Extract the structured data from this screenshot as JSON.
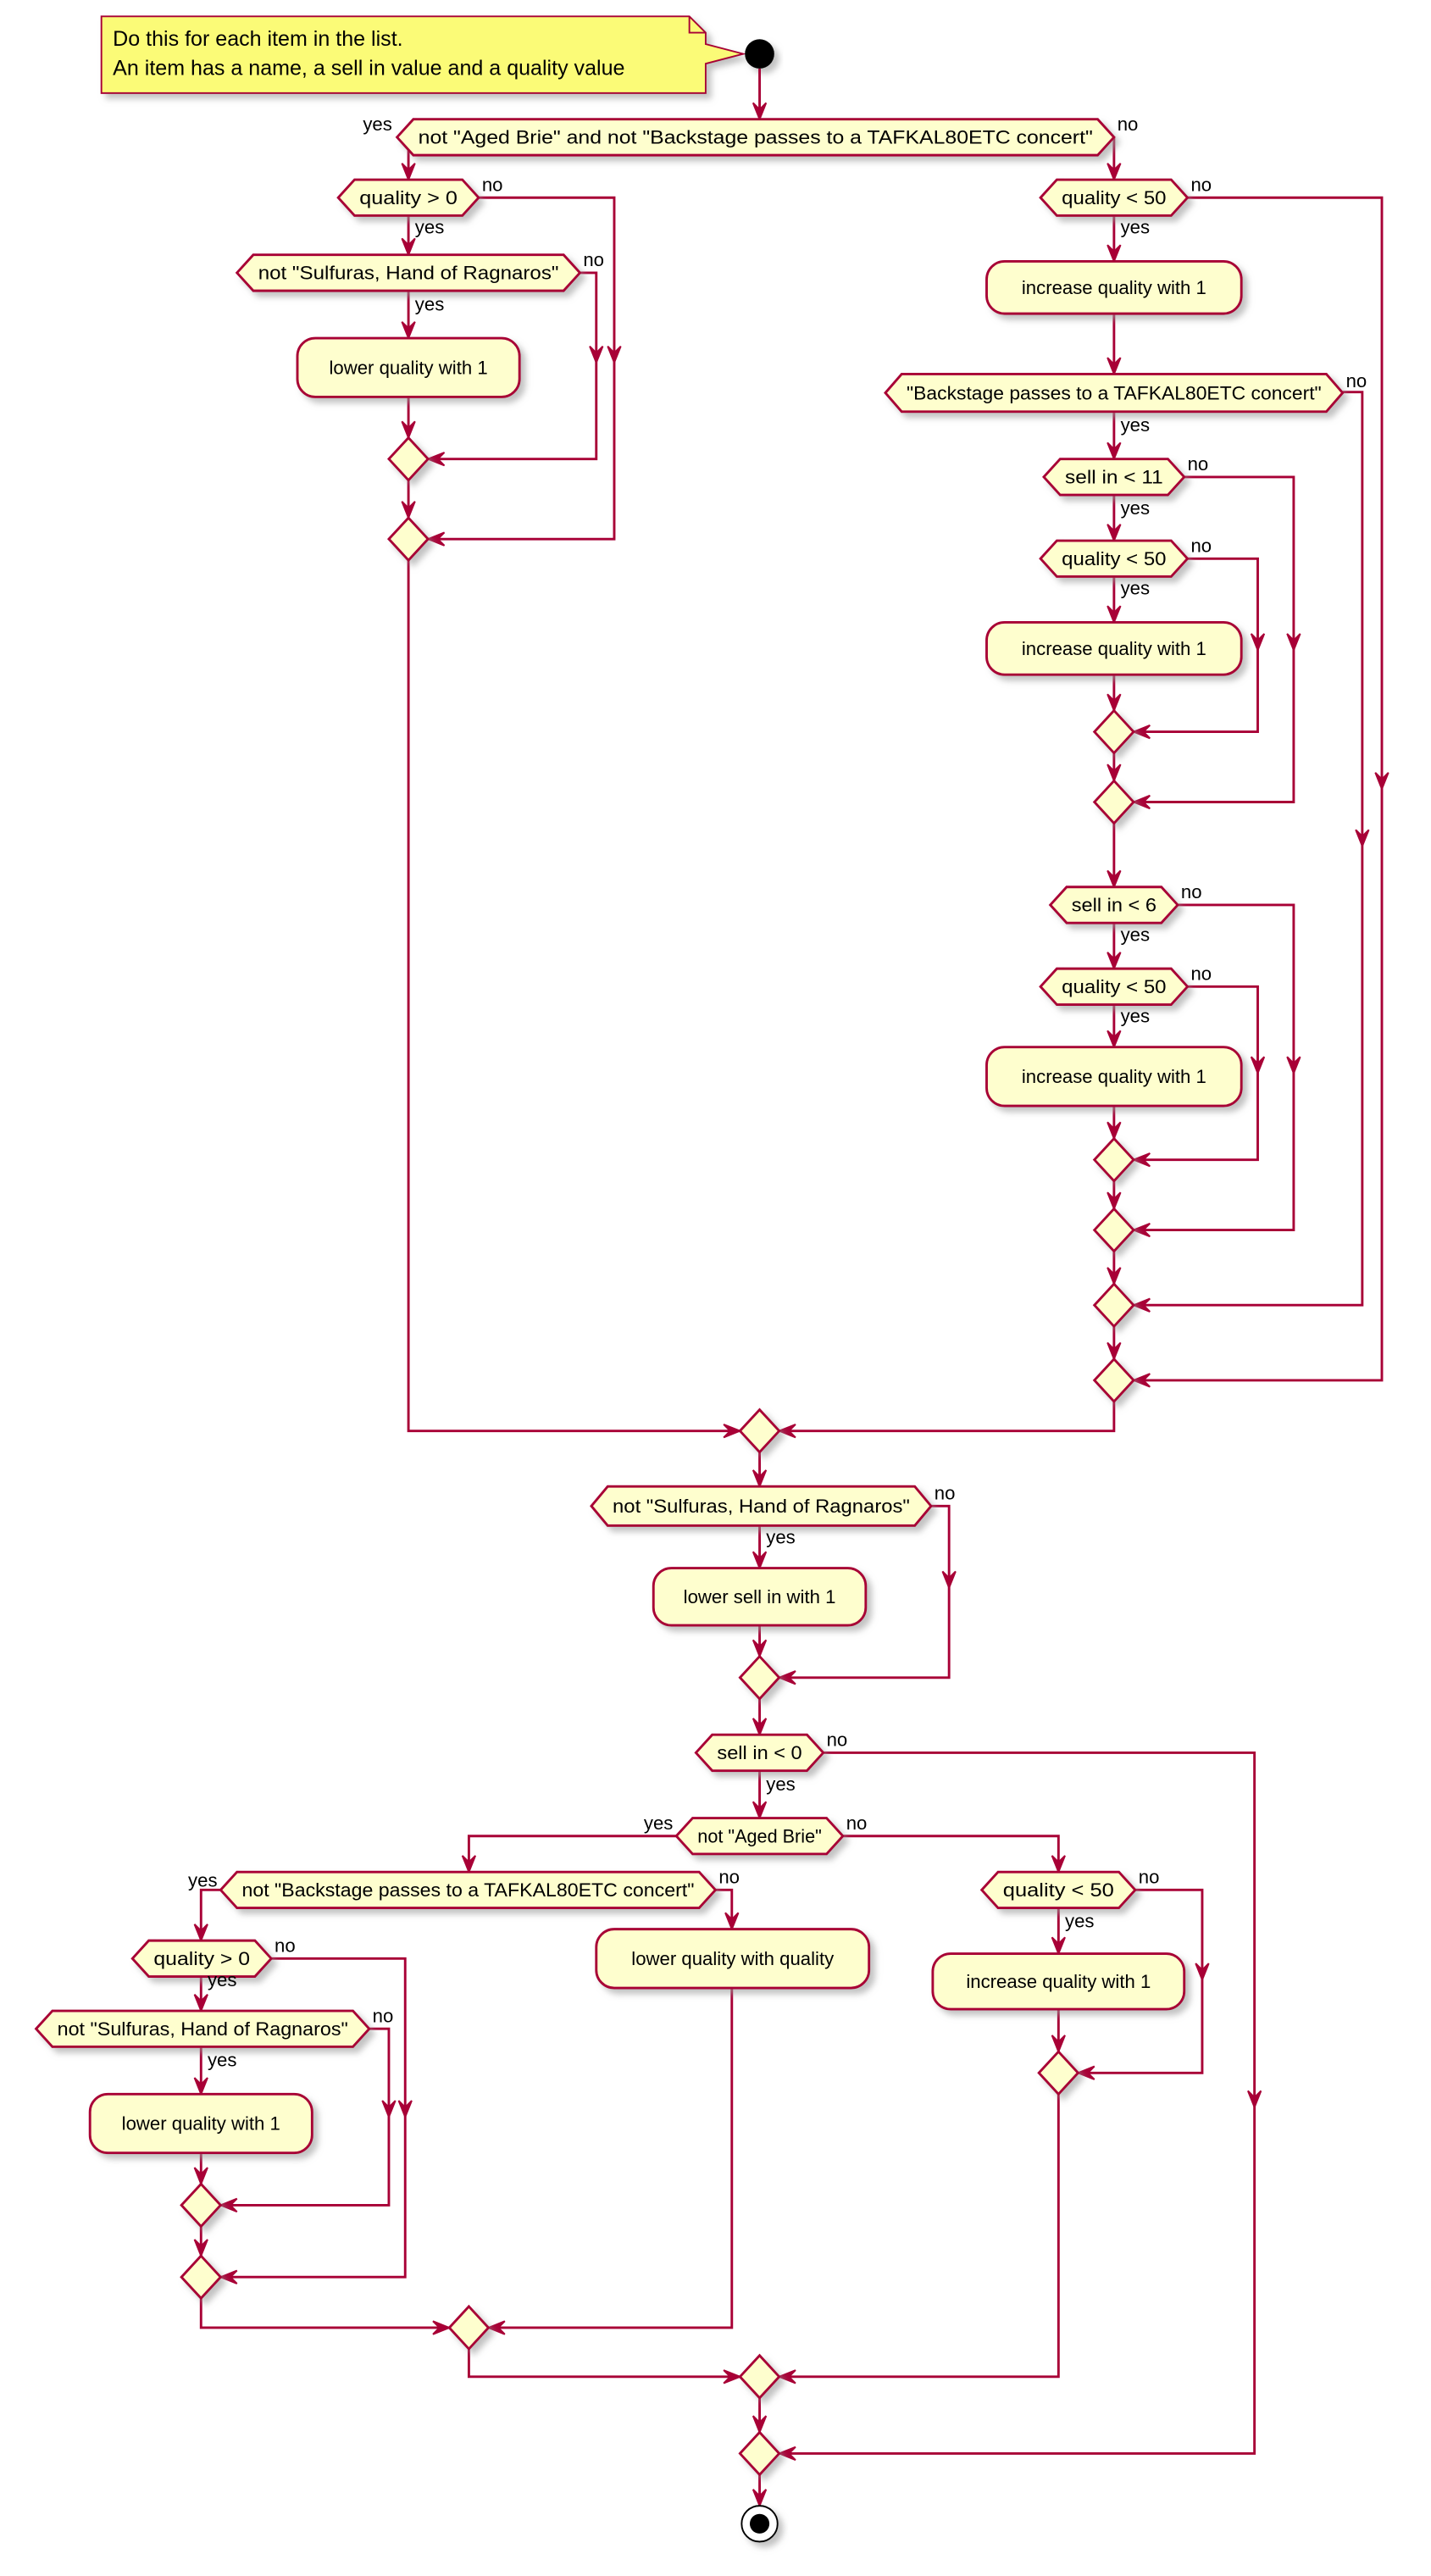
{
  "colors": {
    "stroke": "#A80036",
    "fill": "#FEFECE",
    "note_fill": "#FBFB77",
    "shadow": "#999999"
  },
  "note": {
    "line1": "Do this for each item in the list.",
    "line2": "An item has a name, a sell in value and a quality value"
  },
  "decisions": {
    "d1": "not \"Aged Brie\" and not \"Backstage passes to a TAFKAL80ETC concert\"",
    "d2": "quality > 0",
    "d3": "not \"Sulfuras, Hand of Ragnaros\"",
    "d4": "quality < 50",
    "d5": "\"Backstage passes to a TAFKAL80ETC concert\"",
    "d6": "sell in < 11",
    "d7": "quality < 50",
    "d8": "sell in < 6",
    "d9": "quality < 50",
    "d10": "not \"Sulfuras, Hand of Ragnaros\"",
    "d11": "sell in < 0",
    "d12": "not \"Aged Brie\"",
    "d13": "not \"Backstage passes to a TAFKAL80ETC concert\"",
    "d14": "quality < 50",
    "d15": "quality > 0",
    "d16": "not \"Sulfuras, Hand of Ragnaros\""
  },
  "actions": {
    "b1": "lower quality with 1",
    "b2": "increase quality with 1",
    "b3": "increase quality with 1",
    "b4": "increase quality with 1",
    "b5": "lower sell in with 1",
    "b6": "lower quality with quality",
    "b7": "increase quality with 1",
    "b8": "lower quality with 1"
  },
  "branch": {
    "yes": "yes",
    "no": "no"
  }
}
